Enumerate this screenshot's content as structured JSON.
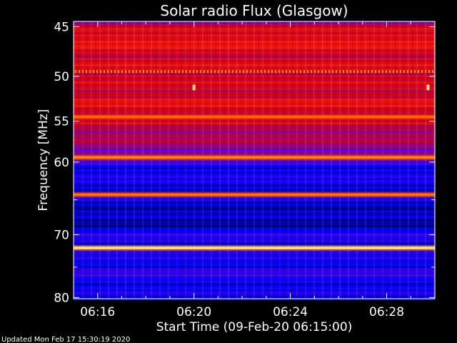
{
  "chart_data": {
    "type": "heatmap",
    "title": "Solar radio Flux (Glasgow)",
    "ylabel": "Frequency [MHz]",
    "xlabel": "Start Time (09-Feb-20 06:15:00)",
    "footer": "Updated Mon Feb 17 15:30:19 2020",
    "x_axis": {
      "range": [
        "06:15:00",
        "06:30:00"
      ],
      "ticks": [
        "06:16",
        "06:20",
        "06:24",
        "06:28"
      ],
      "tick_minutes": [
        16,
        20,
        24,
        28
      ],
      "start_minute": 15,
      "end_minute": 30
    },
    "y_axis": {
      "unit": "MHz",
      "scale": "log",
      "reversed": true,
      "range": [
        44.5,
        80.2
      ],
      "ticks": [
        45,
        50,
        55,
        60,
        70,
        80
      ],
      "minor_ticks": [
        65,
        75
      ]
    },
    "colormap": [
      "#000033",
      "#0000ff",
      "#6600cc",
      "#cc0022",
      "#ff2200",
      "#ff8800",
      "#ffff99"
    ],
    "intensity_profile": [
      {
        "freq": 44.5,
        "level": 0.3
      },
      {
        "freq": 45.0,
        "level": 0.5
      },
      {
        "freq": 46.0,
        "level": 0.6
      },
      {
        "freq": 48.0,
        "level": 0.52
      },
      {
        "freq": 49.5,
        "level": 0.55
      },
      {
        "freq": 51.0,
        "level": 0.5
      },
      {
        "freq": 53.0,
        "level": 0.56
      },
      {
        "freq": 55.0,
        "level": 0.5
      },
      {
        "freq": 57.0,
        "level": 0.44
      },
      {
        "freq": 59.0,
        "level": 0.38
      },
      {
        "freq": 60.5,
        "level": 0.2
      },
      {
        "freq": 63.0,
        "level": 0.17
      },
      {
        "freq": 66.0,
        "level": 0.14
      },
      {
        "freq": 68.0,
        "level": 0.08
      },
      {
        "freq": 70.0,
        "level": 0.2
      },
      {
        "freq": 73.0,
        "level": 0.18
      },
      {
        "freq": 76.0,
        "level": 0.22
      },
      {
        "freq": 80.2,
        "level": 0.15
      }
    ],
    "bright_lines": [
      {
        "freq": 49.5,
        "level": 0.85,
        "dotted": true
      },
      {
        "freq": 54.5,
        "level": 0.78
      },
      {
        "freq": 59.4,
        "level": 0.82
      },
      {
        "freq": 64.3,
        "level": 0.8
      },
      {
        "freq": 72.0,
        "level": 0.95
      }
    ],
    "bursts": [
      {
        "time_minute": 20.0,
        "freq": 51.2
      },
      {
        "time_minute": 29.72,
        "freq": 51.2
      }
    ]
  }
}
